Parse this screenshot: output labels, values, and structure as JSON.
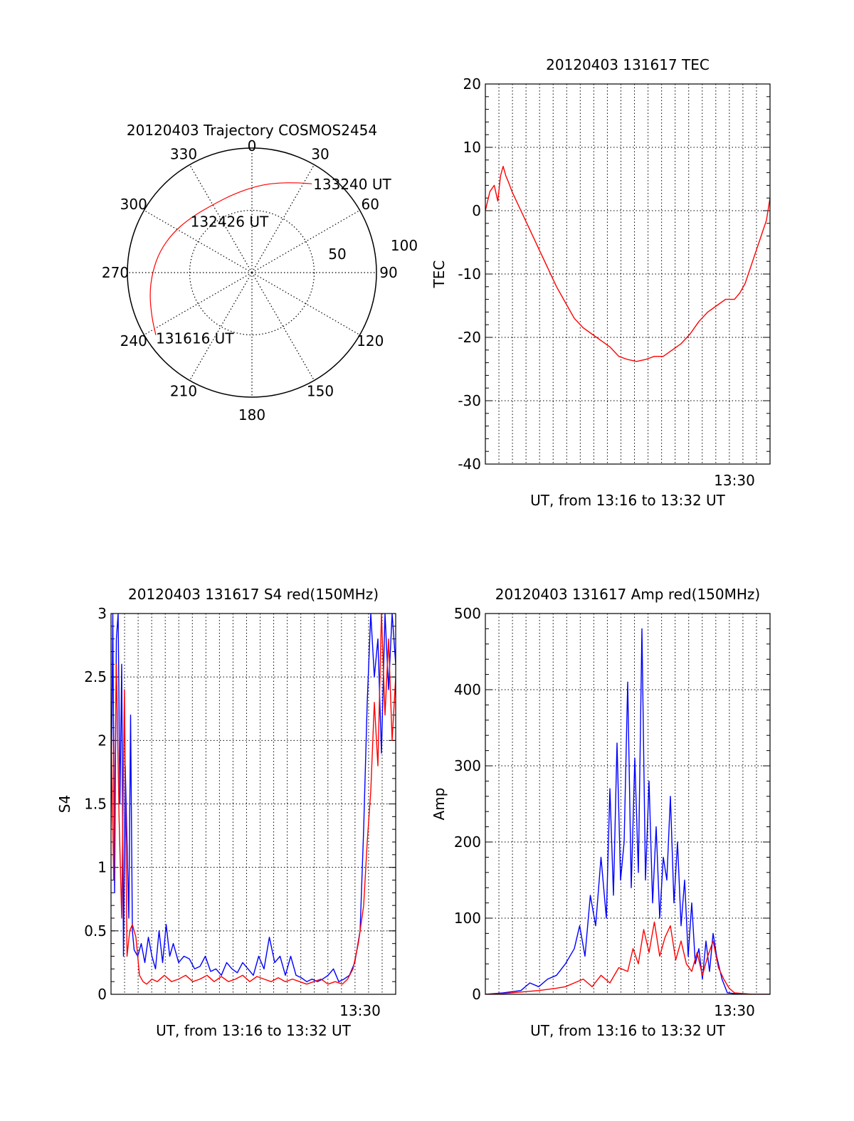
{
  "chart_data": [
    {
      "type": "polar",
      "title": "20120403 Trajectory COSMOS2454",
      "angle_labels": [
        "0",
        "30",
        "60",
        "90",
        "120",
        "150",
        "180",
        "210",
        "240",
        "270",
        "300",
        "330"
      ],
      "radius_labels": [
        "50",
        "100"
      ],
      "radius_range": [
        0,
        100
      ],
      "grid": true,
      "trajectory": {
        "color": "#ff0000",
        "points": [
          {
            "azimuth": 237,
            "radius": 92
          },
          {
            "azimuth": 246,
            "radius": 88
          },
          {
            "azimuth": 258,
            "radius": 84
          },
          {
            "azimuth": 270,
            "radius": 80
          },
          {
            "azimuth": 283,
            "radius": 76
          },
          {
            "azimuth": 297,
            "radius": 71
          },
          {
            "azimuth": 312,
            "radius": 66
          },
          {
            "azimuth": 330,
            "radius": 63
          },
          {
            "azimuth": 348,
            "radius": 65
          },
          {
            "azimuth": 4,
            "radius": 70
          },
          {
            "azimuth": 16,
            "radius": 75
          },
          {
            "azimuth": 27,
            "radius": 81
          },
          {
            "azimuth": 34,
            "radius": 86
          }
        ]
      },
      "annotations": [
        {
          "text": "133240 UT",
          "azimuth": 34,
          "radius": 86
        },
        {
          "text": "132426 UT",
          "azimuth": 340,
          "radius": 44
        },
        {
          "text": "131616 UT",
          "azimuth": 237,
          "radius": 92
        }
      ]
    },
    {
      "type": "line",
      "title": "20120403 131617 TEC",
      "xlabel": "UT, from 13:16 to 13:32 UT",
      "ylabel": "TEC",
      "xlim": [
        0,
        16
      ],
      "ylim": [
        -40,
        20
      ],
      "yticks": [
        "20",
        "10",
        "0",
        "-10",
        "-20",
        "-30",
        "-40"
      ],
      "xtick_label": {
        "text": "13:30",
        "x": 14
      },
      "grid": true,
      "series": [
        {
          "color": "#ff0000",
          "x": [
            0,
            0.25,
            0.5,
            0.7,
            0.85,
            1.0,
            1.15,
            1.3,
            1.5,
            2,
            2.5,
            3,
            3.5,
            4,
            4.5,
            5,
            5.5,
            6,
            6.5,
            7,
            7.5,
            8,
            8.5,
            9,
            9.5,
            10,
            10.5,
            11,
            11.5,
            12,
            12.5,
            13,
            13.5,
            14,
            14.3,
            14.6,
            14.9,
            15.2,
            15.5,
            15.8,
            16
          ],
          "values": [
            0,
            3,
            4,
            1.5,
            5.5,
            7,
            5.5,
            4.5,
            3,
            0,
            -3,
            -6,
            -9,
            -12,
            -14.5,
            -17,
            -18.5,
            -19.5,
            -20.5,
            -21.5,
            -23,
            -23.5,
            -23.8,
            -23.5,
            -23,
            -23,
            -22,
            -21,
            -19.5,
            -17.5,
            -16,
            -15,
            -14,
            -14,
            -13,
            -11.5,
            -9,
            -6.5,
            -4,
            -1.5,
            2
          ]
        }
      ]
    },
    {
      "type": "line",
      "title": "20120403 131617 S4 red(150MHz)",
      "xlabel": "UT, from 13:16 to 13:32 UT",
      "ylabel": "S4",
      "xlim": [
        0,
        16
      ],
      "ylim": [
        0,
        3
      ],
      "yticks": [
        "3",
        "2.5",
        "2",
        "1.5",
        "1",
        "0.5",
        "0"
      ],
      "xtick_label": {
        "text": "13:30",
        "x": 14
      },
      "grid": true,
      "series": [
        {
          "color": "#0000ff",
          "x": [
            0,
            0.1,
            0.2,
            0.3,
            0.4,
            0.5,
            0.6,
            0.7,
            0.8,
            0.9,
            1.0,
            1.1,
            1.2,
            1.3,
            1.5,
            1.7,
            1.9,
            2.1,
            2.3,
            2.5,
            2.7,
            2.9,
            3.1,
            3.3,
            3.5,
            3.8,
            4.1,
            4.4,
            4.7,
            5,
            5.3,
            5.6,
            5.9,
            6.2,
            6.5,
            6.8,
            7.1,
            7.4,
            7.7,
            8,
            8.3,
            8.6,
            8.9,
            9.2,
            9.5,
            9.8,
            10.1,
            10.4,
            10.7,
            11,
            11.3,
            11.6,
            11.9,
            12.2,
            12.5,
            12.8,
            13.1,
            13.4,
            13.7,
            14,
            14.2,
            14.4,
            14.6,
            14.8,
            15,
            15.2,
            15.4,
            15.6,
            15.8,
            16
          ],
          "values": [
            1.3,
            3,
            0.8,
            2.8,
            3,
            1.5,
            2.6,
            0.3,
            1.8,
            1.2,
            0.6,
            2.2,
            0.5,
            0.35,
            0.3,
            0.4,
            0.25,
            0.45,
            0.3,
            0.2,
            0.5,
            0.25,
            0.55,
            0.3,
            0.4,
            0.25,
            0.3,
            0.28,
            0.2,
            0.22,
            0.3,
            0.18,
            0.2,
            0.15,
            0.25,
            0.2,
            0.17,
            0.25,
            0.2,
            0.15,
            0.3,
            0.2,
            0.45,
            0.25,
            0.3,
            0.15,
            0.3,
            0.15,
            0.13,
            0.1,
            0.12,
            0.1,
            0.12,
            0.15,
            0.2,
            0.1,
            0.12,
            0.15,
            0.25,
            0.5,
            1.3,
            2.3,
            3,
            2.5,
            2.8,
            1.9,
            3,
            2.4,
            3,
            2.6
          ]
        },
        {
          "color": "#ff0000",
          "x": [
            0,
            0.15,
            0.3,
            0.45,
            0.6,
            0.75,
            0.9,
            1.05,
            1.2,
            1.4,
            1.6,
            1.8,
            2.0,
            2.3,
            2.6,
            3,
            3.4,
            3.8,
            4.2,
            4.6,
            5,
            5.4,
            5.8,
            6.2,
            6.6,
            7,
            7.4,
            7.8,
            8.2,
            8.6,
            9,
            9.4,
            9.8,
            10.2,
            10.6,
            11,
            11.4,
            11.8,
            12.2,
            12.6,
            13,
            13.3,
            13.6,
            13.9,
            14.2,
            14.4,
            14.6,
            14.8,
            15,
            15.2,
            15.4,
            15.6,
            15.8,
            16
          ],
          "values": [
            2.2,
            0.9,
            2.6,
            1.4,
            0.6,
            2.4,
            0.3,
            0.5,
            0.55,
            0.45,
            0.15,
            0.1,
            0.08,
            0.12,
            0.1,
            0.15,
            0.1,
            0.12,
            0.15,
            0.1,
            0.12,
            0.15,
            0.1,
            0.14,
            0.1,
            0.12,
            0.15,
            0.1,
            0.14,
            0.12,
            0.1,
            0.13,
            0.1,
            0.12,
            0.1,
            0.08,
            0.1,
            0.12,
            0.08,
            0.1,
            0.08,
            0.12,
            0.2,
            0.4,
            0.7,
            1.2,
            1.6,
            2.3,
            1.8,
            3,
            2.2,
            2.8,
            2.0,
            2.5
          ]
        }
      ]
    },
    {
      "type": "line",
      "title": "20120403 131617 Amp red(150MHz)",
      "xlabel": "UT, from 13:16 to 13:32 UT",
      "ylabel": "Amp",
      "xlim": [
        0,
        16
      ],
      "ylim": [
        0,
        500
      ],
      "yticks": [
        "500",
        "400",
        "300",
        "200",
        "100",
        "0"
      ],
      "xtick_label": {
        "text": "13:30",
        "x": 14
      },
      "grid": true,
      "series": [
        {
          "color": "#0000ff",
          "x": [
            0,
            1,
            2,
            2.5,
            3,
            3.5,
            4,
            4.5,
            5,
            5.3,
            5.6,
            5.9,
            6.2,
            6.5,
            6.8,
            7.0,
            7.2,
            7.4,
            7.6,
            7.8,
            8.0,
            8.2,
            8.4,
            8.6,
            8.8,
            9.0,
            9.2,
            9.4,
            9.6,
            9.8,
            10.0,
            10.2,
            10.4,
            10.6,
            10.8,
            11.0,
            11.2,
            11.4,
            11.6,
            11.8,
            12.0,
            12.2,
            12.4,
            12.6,
            12.8,
            13.0,
            13.3,
            13.6,
            14,
            15,
            16
          ],
          "values": [
            0,
            2,
            5,
            15,
            10,
            20,
            25,
            40,
            60,
            90,
            50,
            130,
            90,
            180,
            100,
            270,
            130,
            330,
            150,
            200,
            410,
            140,
            310,
            160,
            480,
            150,
            280,
            120,
            220,
            100,
            180,
            150,
            260,
            120,
            200,
            90,
            150,
            50,
            120,
            40,
            60,
            20,
            70,
            30,
            80,
            50,
            20,
            2,
            1,
            0,
            0
          ]
        },
        {
          "color": "#ff0000",
          "x": [
            0,
            1,
            2,
            3,
            4,
            4.5,
            5,
            5.5,
            6,
            6.5,
            7,
            7.5,
            8,
            8.3,
            8.6,
            8.9,
            9.2,
            9.5,
            9.8,
            10.1,
            10.4,
            10.7,
            11.0,
            11.3,
            11.6,
            11.9,
            12.2,
            12.5,
            12.8,
            13.1,
            13.4,
            13.7,
            14,
            15,
            16
          ],
          "values": [
            0,
            1,
            3,
            5,
            8,
            10,
            15,
            20,
            10,
            25,
            15,
            35,
            30,
            60,
            40,
            85,
            55,
            95,
            50,
            75,
            90,
            45,
            70,
            40,
            30,
            55,
            25,
            50,
            70,
            35,
            20,
            8,
            2,
            0,
            0
          ]
        }
      ]
    }
  ]
}
